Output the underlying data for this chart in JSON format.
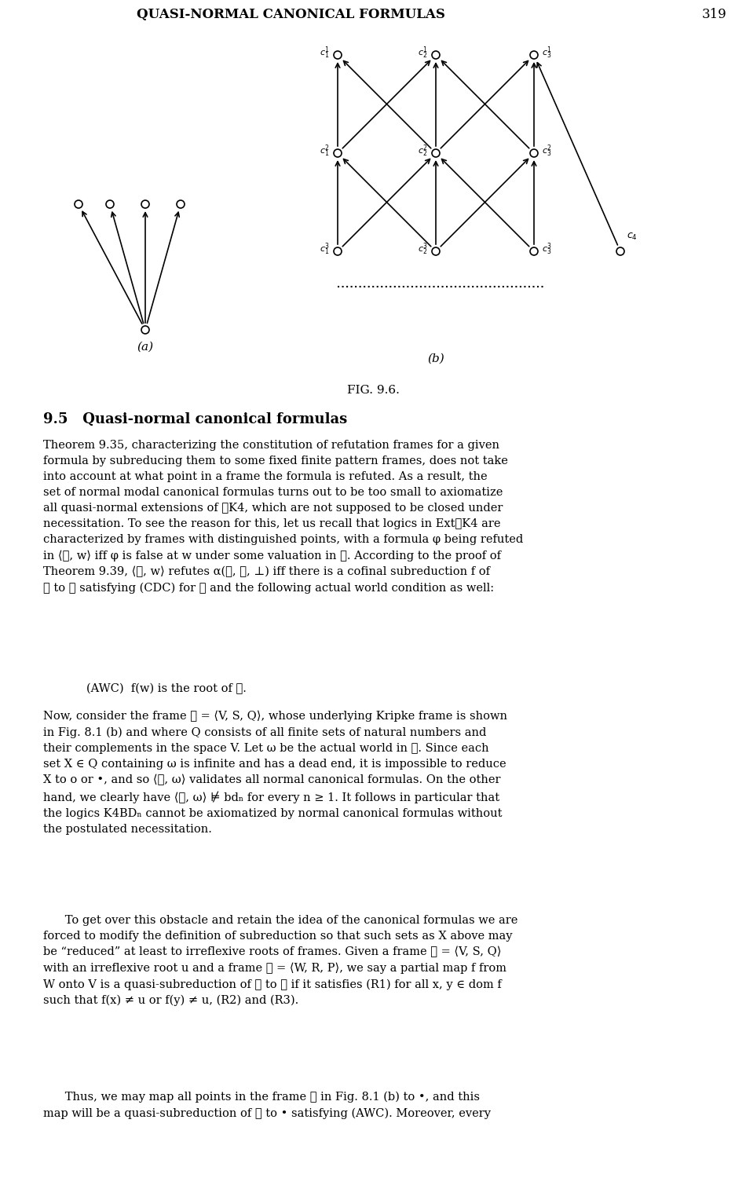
{
  "header_text": "QUASI-NORMAL CANONICAL FORMULAS",
  "page_number": "319",
  "fig_caption": "FIG. 9.6.",
  "section_title": "9.5   Quasi-normal canonical formulas",
  "paragraphs": [
    "Theorem 9.35, characterizing the constitution of refutation frames for a given formula by subreducing them to some fixed finite pattern frames, does not take into account at what point in a frame the formula is refuted. As a result, the set of normal modal canonical formulas turns out to be too small to axiomatize all quasi-normal extensions of ΤK4, which are not supposed to be closed under necessitation. To see the reason for this, let us recall that logics in ExtΤK4 are characterized by frames with distinguished points, with a formula φ being refuted in ⟨ΤG, w⟩ iff φ is false at w under some valuation in ΤG. According to the proof of Theorem 9.39, ⟨ΤG, w⟩ refutes α(ΤF, ΤD, ⊥) iff there is a cofinal subreduction f of ΤG to ΤF satisfying (CDC) for ΤD and the following actual world condition as well:",
    "(AWC)  f(w) is the root of ΤF.",
    "Now, consider the frame ΤG = ⟨V, S, Q⟩, whose underlying Kripke frame is shown in Fig. 8.1 (b) and where Q consists of all finite sets of natural numbers and their complements in the space V. Let ω be the actual world in ΤG. Since each set X ∈ Q containing ω is infinite and has a dead end, it is impossible to reduce X to o or •, and so ⟨ΤG, ω⟩ validates all normal canonical formulas. On the other hand, we clearly have ⟨ΤG, ω⟩ ⊭ bd_n for every n ≥ 1. It follows in particular that the logics K4BD_n cannot be axiomatized by normal canonical formulas without the postulated necessitation.",
    "To get over this obstacle and retain the idea of the canonical formulas we are forced to modify the definition of subreduction so that such sets as X above may be “reduced” at least to irreflexive roots of frames. Given a frame ΤG = ⟨V, S, Q⟩ with an irreflexive root u and a frame ΤF = ⟨W, R, P⟩, we say a partial map f from W onto V is a quasi-subreduction of ΤF to ΤG if it satisfies (R1) for all x, y ∈ dom f such that f(x) ≠ u or f(y) ≠ u, (R2) and (R3).",
    "Thus, we may map all points in the frame ΤG in Fig. 8.1 (b) to •, and this map will be a quasi-subreduction of ΤG to • satisfying (AWC). Moreover, every"
  ]
}
